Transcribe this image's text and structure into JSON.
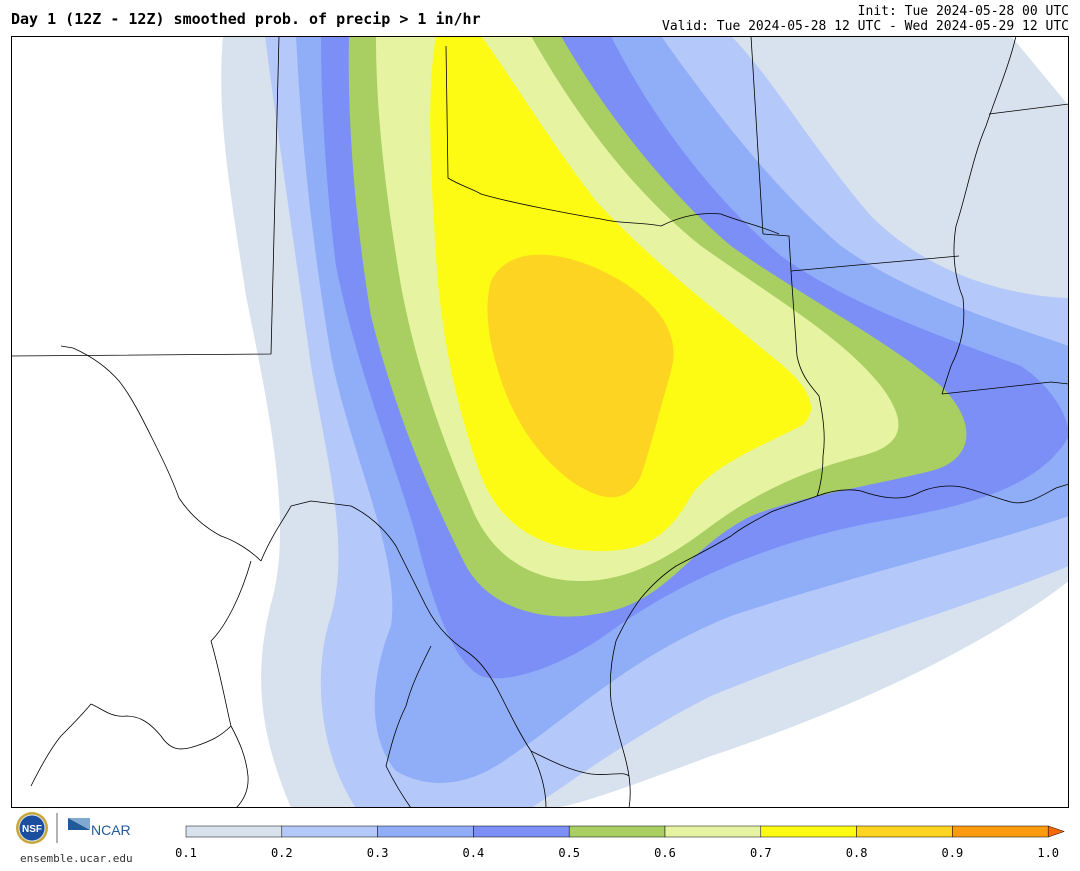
{
  "header": {
    "title": "Day 1 (12Z - 12Z) smoothed prob. of precip > 1 in/hr",
    "init": "Init: Tue 2024-05-28 00 UTC",
    "valid": "Valid: Tue 2024-05-28 12 UTC - Wed 2024-05-29 12 UTC"
  },
  "footer": {
    "site": "ensemble.ucar.edu",
    "logo_nsf": "NSF",
    "logo_ncar": "NCAR"
  },
  "colorbar": {
    "ticks": [
      "0.1",
      "0.2",
      "0.3",
      "0.4",
      "0.5",
      "0.6",
      "0.7",
      "0.8",
      "0.9",
      "1.0"
    ],
    "colors": [
      "#d8e2ee",
      "#b4c8fa",
      "#90aef8",
      "#7b8ff7",
      "#a9cf62",
      "#e6f4a2",
      "#fdfb13",
      "#fcd421",
      "#fd9b0e"
    ],
    "extend_color": "#fb6a00"
  },
  "map": {
    "levels": [
      "0.1-0.2",
      "0.2-0.3",
      "0.3-0.4",
      "0.4-0.5",
      "0.5-0.6",
      "0.6-0.7",
      "0.7-0.8",
      "0.8-0.9"
    ]
  }
}
